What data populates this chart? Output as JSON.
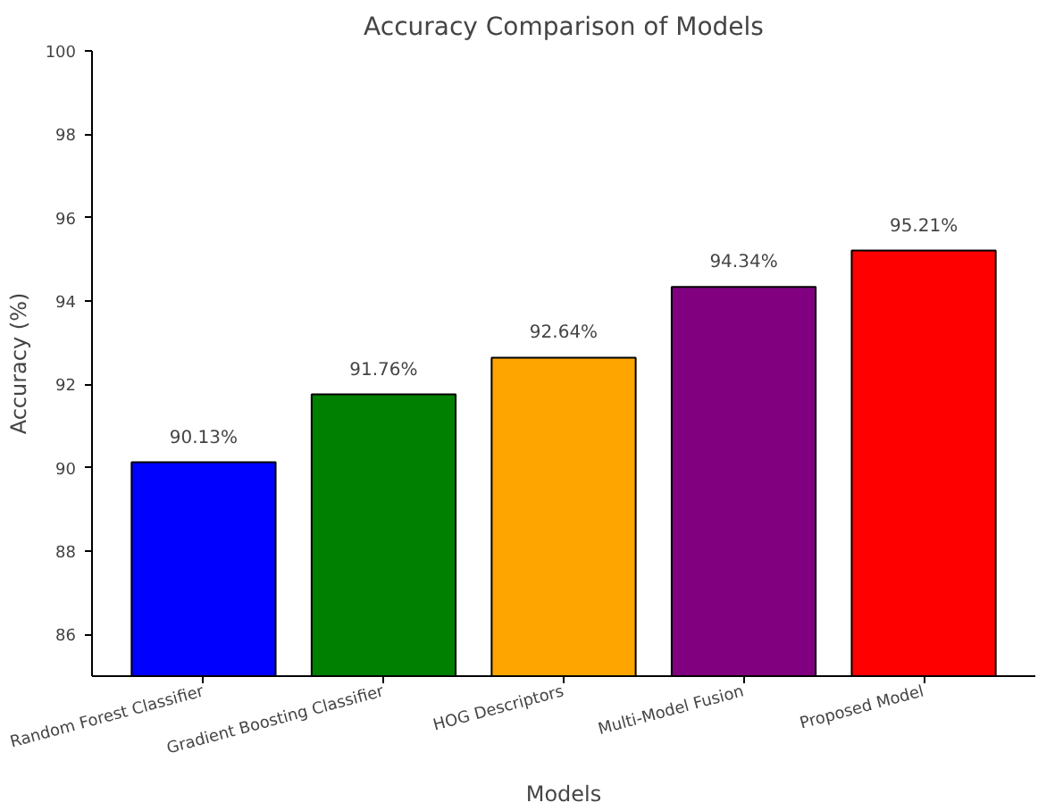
{
  "chart_data": {
    "type": "bar",
    "title": "Accuracy Comparison of Models",
    "xlabel": "Models",
    "ylabel": "Accuracy (%)",
    "categories": [
      "Random Forest Classifier",
      "Gradient Boosting Classifier",
      "HOG Descriptors",
      "Multi-Model Fusion",
      "Proposed Model"
    ],
    "values": [
      90.13,
      91.76,
      92.64,
      94.34,
      95.21
    ],
    "colors": [
      "#0000ff",
      "#008000",
      "#ffa500",
      "#800080",
      "#ff0000"
    ],
    "value_labels": [
      "90.13%",
      "91.76%",
      "92.64%",
      "94.34%",
      "95.21%"
    ],
    "ylim": [
      85,
      100
    ],
    "yticks": [
      86,
      88,
      90,
      92,
      94,
      96,
      98,
      100
    ],
    "grid": false
  }
}
